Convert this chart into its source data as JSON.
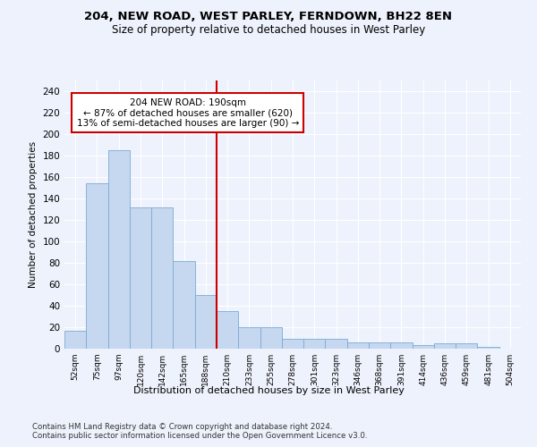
{
  "title1": "204, NEW ROAD, WEST PARLEY, FERNDOWN, BH22 8EN",
  "title2": "Size of property relative to detached houses in West Parley",
  "xlabel": "Distribution of detached houses by size in West Parley",
  "ylabel": "Number of detached properties",
  "categories": [
    "52sqm",
    "75sqm",
    "97sqm",
    "120sqm",
    "142sqm",
    "165sqm",
    "188sqm",
    "210sqm",
    "233sqm",
    "255sqm",
    "278sqm",
    "301sqm",
    "323sqm",
    "346sqm",
    "368sqm",
    "391sqm",
    "414sqm",
    "436sqm",
    "459sqm",
    "481sqm",
    "504sqm"
  ],
  "values": [
    17,
    154,
    185,
    132,
    132,
    82,
    50,
    35,
    20,
    20,
    9,
    9,
    9,
    6,
    6,
    6,
    3,
    5,
    5,
    2,
    0
  ],
  "bar_color": "#c5d8f0",
  "bar_edge_color": "#7baad4",
  "vline_color": "#cc0000",
  "annotation_text": "204 NEW ROAD: 190sqm\n← 87% of detached houses are smaller (620)\n13% of semi-detached houses are larger (90) →",
  "annotation_box_color": "#ffffff",
  "annotation_box_edge": "#cc0000",
  "ylim": [
    0,
    250
  ],
  "yticks": [
    0,
    20,
    40,
    60,
    80,
    100,
    120,
    140,
    160,
    180,
    200,
    220,
    240
  ],
  "footer": "Contains HM Land Registry data © Crown copyright and database right 2024.\nContains public sector information licensed under the Open Government Licence v3.0.",
  "bg_color": "#eef2fc",
  "grid_color": "#ffffff"
}
